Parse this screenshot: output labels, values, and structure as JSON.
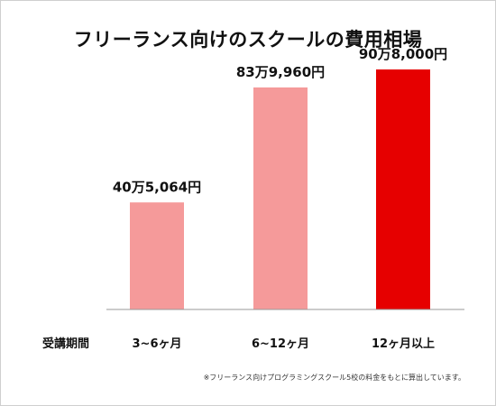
{
  "title": "フリーランス向けのスクールの費用相場",
  "x_axis_title": "受講期間",
  "note": "※フリーランス向けプログラミングスクール5校の料金をもとに算出しています。",
  "colors": {
    "normal_bar": "#f59a9a",
    "highlight_bar": "#e60000",
    "baseline": "#999999",
    "text": "#111111"
  },
  "chart_data": {
    "type": "bar",
    "categories": [
      "3~6ヶ月",
      "6~12ヶ月",
      "12ヶ月以上"
    ],
    "values": [
      405064,
      839960,
      908000
    ],
    "data_labels": [
      "40万5,064円",
      "83万9,960円",
      "90万8,000円"
    ],
    "highlight_index": 2,
    "title": "フリーランス向けのスクールの費用相場",
    "xlabel": "受講期間",
    "ylabel": "",
    "ylim": [
      0,
      1000000
    ],
    "grid": false,
    "legend": "none"
  }
}
